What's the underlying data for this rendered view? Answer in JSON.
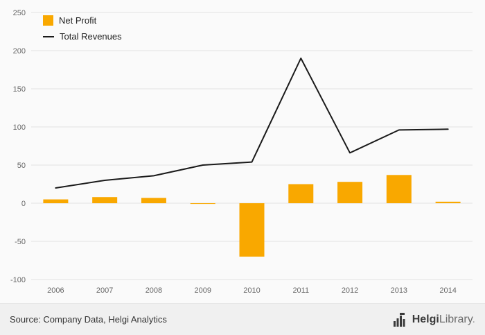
{
  "chart_data": {
    "type": "bar+line",
    "categories": [
      "2006",
      "2007",
      "2008",
      "2009",
      "2010",
      "2011",
      "2012",
      "2013",
      "2014"
    ],
    "series": [
      {
        "name": "Net Profit",
        "type": "bar",
        "color": "#F9A800",
        "values": [
          5,
          8,
          7,
          -1,
          -70,
          25,
          28,
          37,
          2
        ]
      },
      {
        "name": "Total Revenues",
        "type": "line",
        "color": "#1a1a1a",
        "values": [
          20,
          30,
          36,
          50,
          54,
          190,
          66,
          96,
          97
        ]
      }
    ],
    "title": "",
    "xlabel": "",
    "ylabel": "",
    "ylim": [
      -100,
      250
    ],
    "yticks": [
      -100,
      -50,
      0,
      50,
      100,
      150,
      200,
      250
    ],
    "grid": true,
    "grid_color": "#e3e3e3",
    "legend_position": "top-left"
  },
  "legend": {
    "net_profit_label": "Net Profit",
    "total_revenues_label": "Total Revenues"
  },
  "footer": {
    "source_text": "Source: Company Data, Helgi Analytics",
    "logo_bold": "Helgi",
    "logo_light": "Library",
    "logo_suffix": "."
  }
}
